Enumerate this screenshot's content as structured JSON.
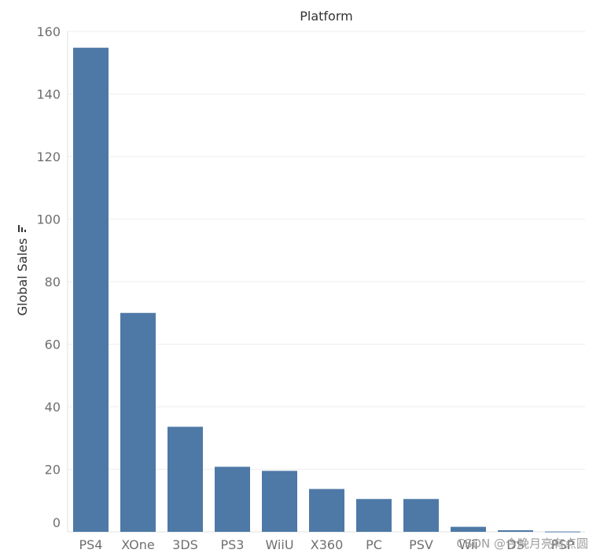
{
  "chart_data": {
    "type": "bar",
    "title": "Platform",
    "ylabel": "Global Sales",
    "categories": [
      "PS4",
      "XOne",
      "3DS",
      "PS3",
      "WiiU",
      "X360",
      "PC",
      "PSV",
      "Wii",
      "DS",
      "PSP"
    ],
    "values": [
      154.8,
      70.0,
      33.6,
      20.8,
      19.5,
      13.7,
      10.5,
      10.5,
      1.6,
      0.5,
      0.1
    ],
    "ylim": [
      0,
      160
    ],
    "yticks": [
      0,
      20,
      40,
      60,
      80,
      100,
      120,
      140,
      160
    ],
    "grid": true,
    "bar_color": "#4e79a7"
  },
  "watermark": "CSDN @今晚月亮有点圆"
}
